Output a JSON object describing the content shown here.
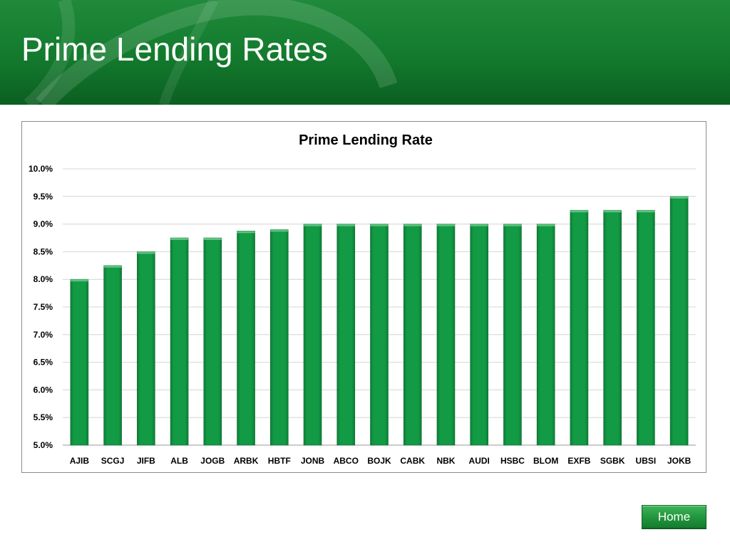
{
  "slide": {
    "title": "Prime Lending Rates",
    "home_button_label": "Home",
    "header_color": "#137a2d"
  },
  "chart_data": {
    "type": "bar",
    "title": "Prime Lending Rate",
    "xlabel": "",
    "ylabel": "",
    "ylim": [
      5.0,
      10.0
    ],
    "y_step": 0.5,
    "y_tick_format": "percent_1dp",
    "grid": true,
    "legend": "none",
    "bar_color": "#129a45",
    "categories": [
      "AJIB",
      "SCGJ",
      "JIFB",
      "ALB",
      "JOGB",
      "ARBK",
      "HBTF",
      "JONB",
      "ABCO",
      "BOJK",
      "CABK",
      "NBK",
      "AUDI",
      "HSBC",
      "BLOM",
      "EXFB",
      "SGBK",
      "UBSI",
      "JOKB"
    ],
    "values": [
      8.0,
      8.25,
      8.5,
      8.75,
      8.75,
      8.875,
      8.9,
      9.0,
      9.0,
      9.0,
      9.0,
      9.0,
      9.0,
      9.0,
      9.0,
      9.25,
      9.25,
      9.25,
      9.5
    ]
  }
}
